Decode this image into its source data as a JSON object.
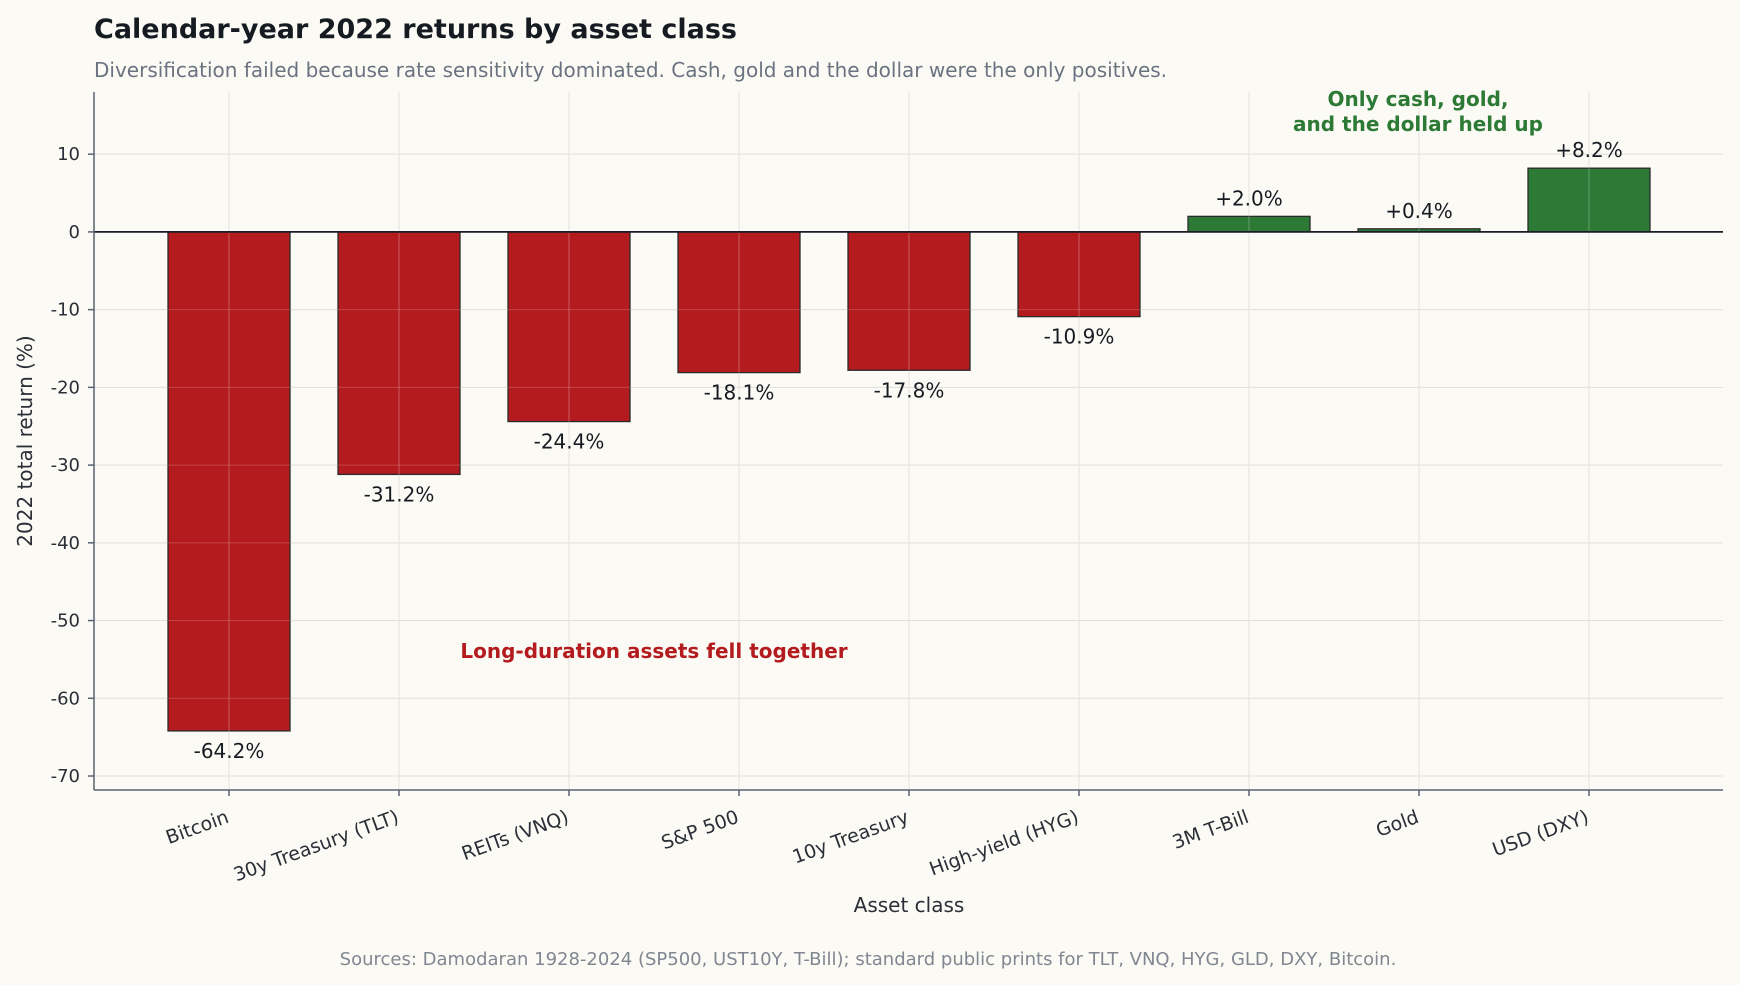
{
  "chart_data": {
    "type": "bar",
    "title": "Calendar-year 2022 returns by asset class",
    "subtitle": "Diversification failed because rate sensitivity dominated. Cash, gold and the dollar were the only positives.",
    "xlabel": "Asset class",
    "ylabel": "2022 total return (%)",
    "categories": [
      "Bitcoin",
      "30y Treasury (TLT)",
      "REITs (VNQ)",
      "S&P 500",
      "10y Treasury",
      "High-yield (HYG)",
      "3M T-Bill",
      "Gold",
      "USD (DXY)"
    ],
    "values": [
      -64.2,
      -31.2,
      -24.4,
      -18.1,
      -17.8,
      -10.9,
      2.0,
      0.4,
      8.2
    ],
    "value_labels": [
      "-64.2%",
      "-31.2%",
      "-24.4%",
      "-18.1%",
      "-17.8%",
      "-10.9%",
      "+2.0%",
      "+0.4%",
      "+8.2%"
    ],
    "ylim": [
      -71.8,
      18
    ],
    "yticks": [
      10,
      0,
      -10,
      -20,
      -30,
      -40,
      -50,
      -60,
      -70
    ],
    "ytick_labels": [
      "10",
      "0",
      "-10",
      "-20",
      "-30",
      "-40",
      "-50",
      "-60",
      "-70"
    ],
    "grid": true,
    "colors": {
      "negative": "#b31b1e",
      "positive": "#2c7a35",
      "background": "#fbfaf5"
    },
    "annotations": {
      "negative_note": "Long-duration assets fell together",
      "positive_note_line1": "Only cash, gold,",
      "positive_note_line2": "and the dollar held up"
    },
    "source": "Sources: Damodaran 1928-2024 (SP500, UST10Y, T-Bill); standard public prints for TLT, VNQ, HYG, GLD, DXY, Bitcoin."
  }
}
